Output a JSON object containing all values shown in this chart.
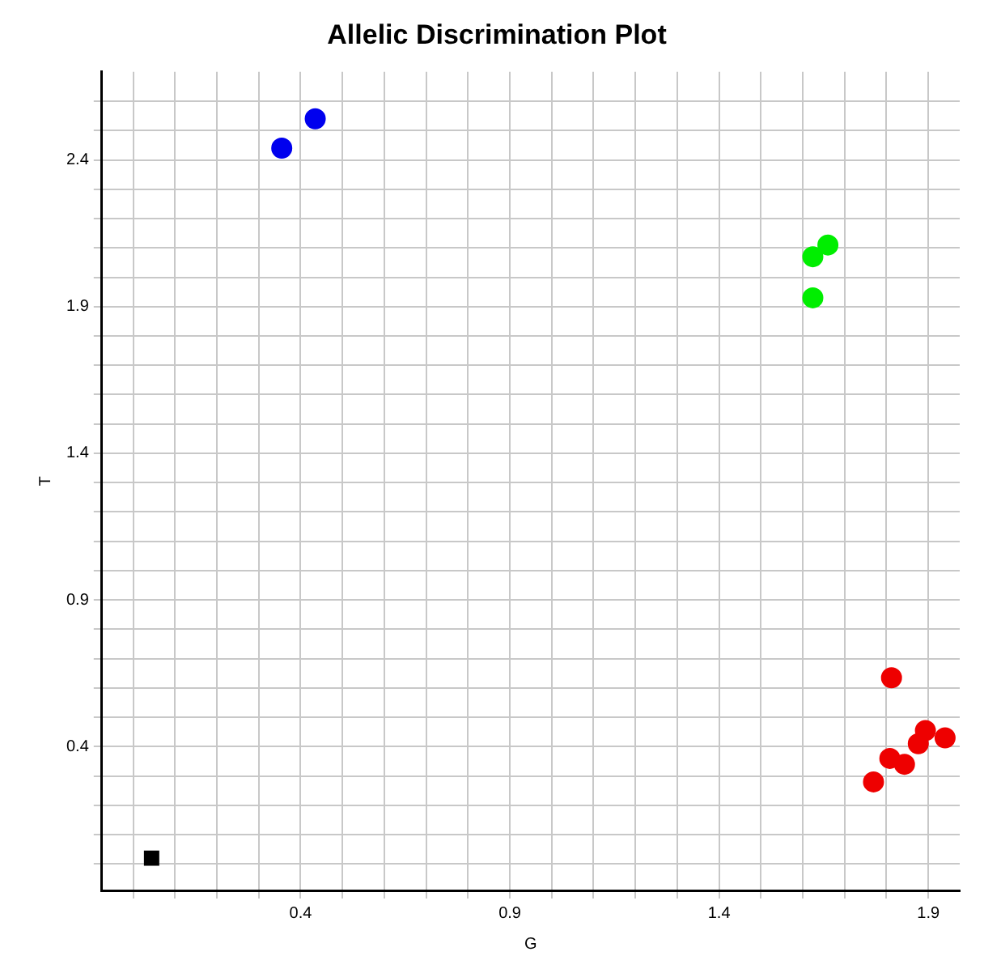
{
  "chart_data": {
    "type": "scatter",
    "title": "Allelic Discrimination Plot",
    "xlabel": "G",
    "ylabel": "T",
    "xlim": [
      -0.075,
      1.975
    ],
    "ylim": [
      -0.09,
      2.7
    ],
    "xticks": [
      {
        "value": 0,
        "label": null
      },
      {
        "value": 0.1,
        "label": null
      },
      {
        "value": 0.2,
        "label": null
      },
      {
        "value": 0.3,
        "label": null
      },
      0.4,
      {
        "value": 0.5,
        "label": null
      },
      {
        "value": 0.6,
        "label": null
      },
      {
        "value": 0.7,
        "label": null
      },
      {
        "value": 0.8,
        "label": null
      },
      0.9,
      {
        "value": 1.0,
        "label": null
      },
      {
        "value": 1.1,
        "label": null
      },
      {
        "value": 1.2,
        "label": null
      },
      {
        "value": 1.3,
        "label": null
      },
      1.4,
      {
        "value": 1.5,
        "label": null
      },
      {
        "value": 1.6,
        "label": null
      },
      {
        "value": 1.7,
        "label": null
      },
      {
        "value": 1.8,
        "label": null
      },
      1.9
    ],
    "yticks": [
      {
        "value": 0,
        "label": null
      },
      {
        "value": 0.1,
        "label": null
      },
      {
        "value": 0.2,
        "label": null
      },
      {
        "value": 0.3,
        "label": null
      },
      0.4,
      {
        "value": 0.5,
        "label": null
      },
      {
        "value": 0.6,
        "label": null
      },
      {
        "value": 0.7,
        "label": null
      },
      {
        "value": 0.8,
        "label": null
      },
      0.9,
      {
        "value": 1.0,
        "label": null
      },
      {
        "value": 1.1,
        "label": null
      },
      {
        "value": 1.2,
        "label": null
      },
      {
        "value": 1.3,
        "label": null
      },
      1.4,
      {
        "value": 1.5,
        "label": null
      },
      {
        "value": 1.6,
        "label": null
      },
      {
        "value": 1.7,
        "label": null
      },
      {
        "value": 1.8,
        "label": null
      },
      1.9,
      {
        "value": 2.0,
        "label": null
      },
      {
        "value": 2.1,
        "label": null
      },
      {
        "value": 2.2,
        "label": null
      },
      {
        "value": 2.3,
        "label": null
      },
      2.4,
      {
        "value": 2.5,
        "label": null
      },
      {
        "value": 2.6,
        "label": null
      }
    ],
    "grid": true,
    "series": [
      {
        "color": "#0000ee",
        "marker": "circle",
        "x": [
          0.435,
          0.355
        ],
        "values": [
          2.54,
          2.44
        ]
      },
      {
        "color": "#00ee00",
        "marker": "circle",
        "x": [
          1.66,
          1.624,
          1.624
        ],
        "values": [
          2.11,
          2.07,
          1.93
        ]
      },
      {
        "color": "#ee0000",
        "marker": "circle",
        "x": [
          1.812,
          1.893,
          1.94,
          1.876,
          1.808,
          1.843,
          1.769
        ],
        "values": [
          0.635,
          0.455,
          0.43,
          0.41,
          0.36,
          0.34,
          0.28
        ]
      },
      {
        "color": "#000000",
        "marker": "square",
        "x": [
          0.044
        ],
        "values": [
          0.02
        ]
      }
    ]
  }
}
